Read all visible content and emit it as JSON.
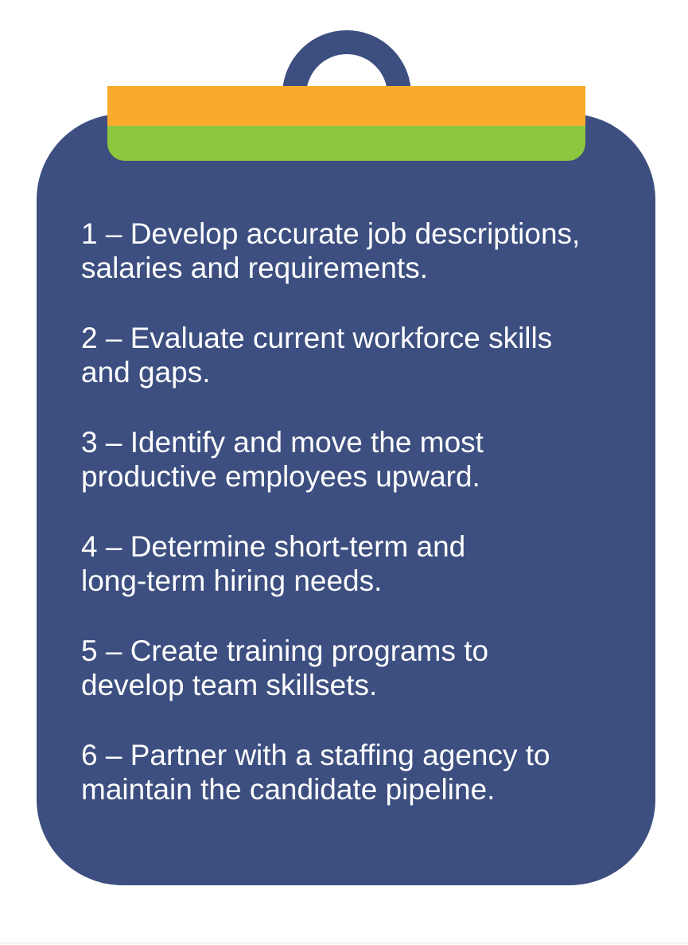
{
  "colors": {
    "board": "#3d4f80",
    "clip_top": "#fbab2b",
    "clip_bottom": "#8dc63f",
    "text": "#ffffff",
    "background": "#ffffff"
  },
  "steps": [
    {
      "line1": "1 – Develop accurate job descriptions,",
      "line2": "salaries and requirements."
    },
    {
      "line1": "2 – Evaluate current workforce skills",
      "line2": "and gaps."
    },
    {
      "line1": "3 – Identify and move the most",
      "line2": "productive employees upward."
    },
    {
      "line1": "4 – Determine short-term and",
      "line2": "long-term hiring needs."
    },
    {
      "line1": "5 – Create training programs to",
      "line2": "develop team skillsets."
    },
    {
      "line1": "6 – Partner with a staffing agency to",
      "line2": "maintain the candidate pipeline."
    }
  ]
}
